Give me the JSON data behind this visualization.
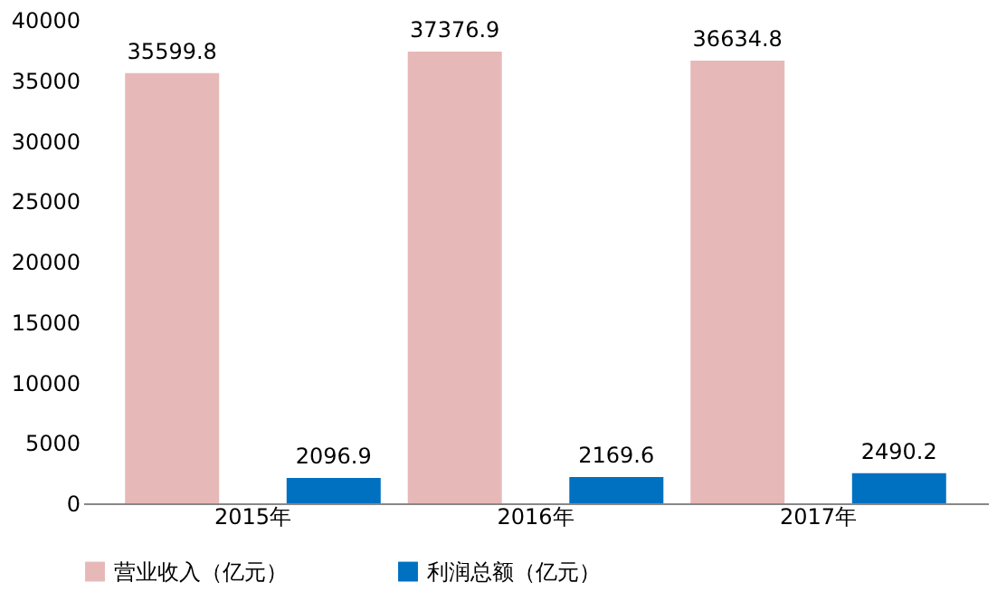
{
  "chart_data": {
    "type": "bar",
    "categories": [
      "2015年",
      "2016年",
      "2017年"
    ],
    "series": [
      {
        "name": "营业收入（亿元）",
        "color": "#e6b9b8",
        "values": [
          35599.8,
          37376.9,
          36634.8
        ]
      },
      {
        "name": "利润总额（亿元）",
        "color": "#0070c0",
        "values": [
          2096.9,
          2169.6,
          2490.2
        ]
      }
    ],
    "ylim": [
      0,
      40000
    ],
    "yticks": [
      0,
      5000,
      10000,
      15000,
      20000,
      25000,
      30000,
      35000,
      40000
    ],
    "data_labels": true,
    "legend": "bottom",
    "grid": false
  }
}
